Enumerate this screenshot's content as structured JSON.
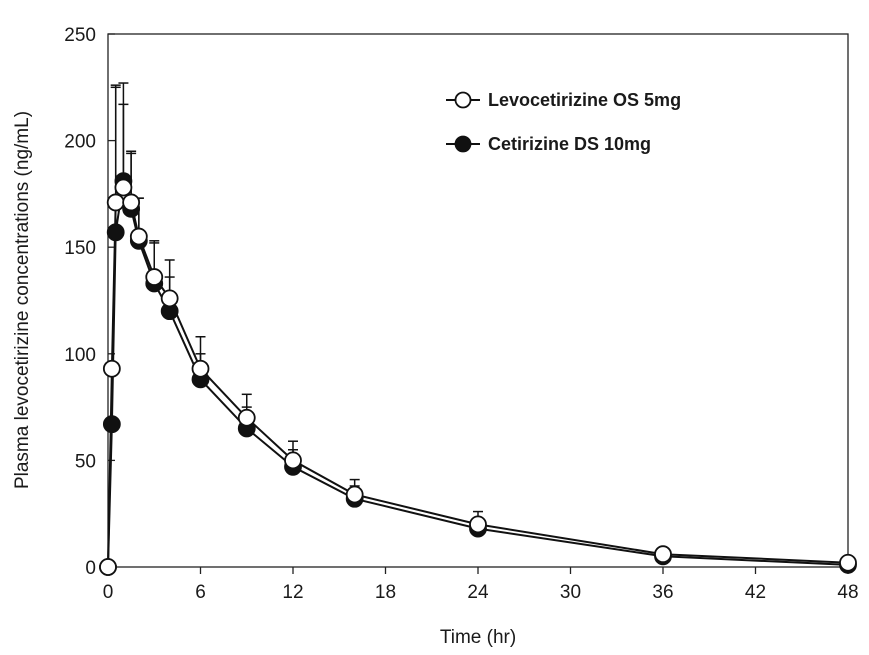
{
  "chart_data": {
    "type": "line",
    "title": "",
    "xlabel": "Time (hr)",
    "ylabel": "Plasma levocetirizine concentrations (ng/mL)",
    "xlim": [
      0,
      48
    ],
    "ylim": [
      0,
      250
    ],
    "xticks": [
      0,
      6,
      12,
      18,
      24,
      30,
      36,
      42,
      48
    ],
    "yticks": [
      0,
      50,
      100,
      150,
      200,
      250
    ],
    "grid": false,
    "legend_position": "top-right",
    "colors": {
      "line": "#111111",
      "open_marker_fill": "#ffffff",
      "filled_marker_fill": "#111111"
    },
    "series": [
      {
        "name": "Levocetirizine OS 5mg",
        "marker": "open-circle",
        "x": [
          0,
          0.25,
          0.5,
          1,
          1.5,
          2,
          3,
          4,
          6,
          9,
          12,
          16,
          24,
          36,
          48
        ],
        "y": [
          0,
          93,
          171,
          178,
          171,
          155,
          136,
          126,
          93,
          70,
          50,
          34,
          20,
          6,
          2
        ],
        "err": [
          0,
          0,
          55,
          39,
          24,
          18,
          17,
          18,
          15,
          11,
          9,
          7,
          6,
          0,
          0
        ]
      },
      {
        "name": "Cetirizine DS 10mg",
        "marker": "filled-circle",
        "x": [
          0,
          0.25,
          0.5,
          1,
          1.5,
          2,
          3,
          4,
          6,
          9,
          12,
          16,
          24,
          36,
          48
        ],
        "y": [
          0,
          67,
          157,
          181,
          168,
          153,
          133,
          120,
          88,
          65,
          47,
          32,
          18,
          5,
          1
        ],
        "err": [
          0,
          0,
          68,
          46,
          26,
          20,
          19,
          16,
          12,
          10,
          8,
          6,
          5,
          0,
          0
        ]
      }
    ]
  }
}
